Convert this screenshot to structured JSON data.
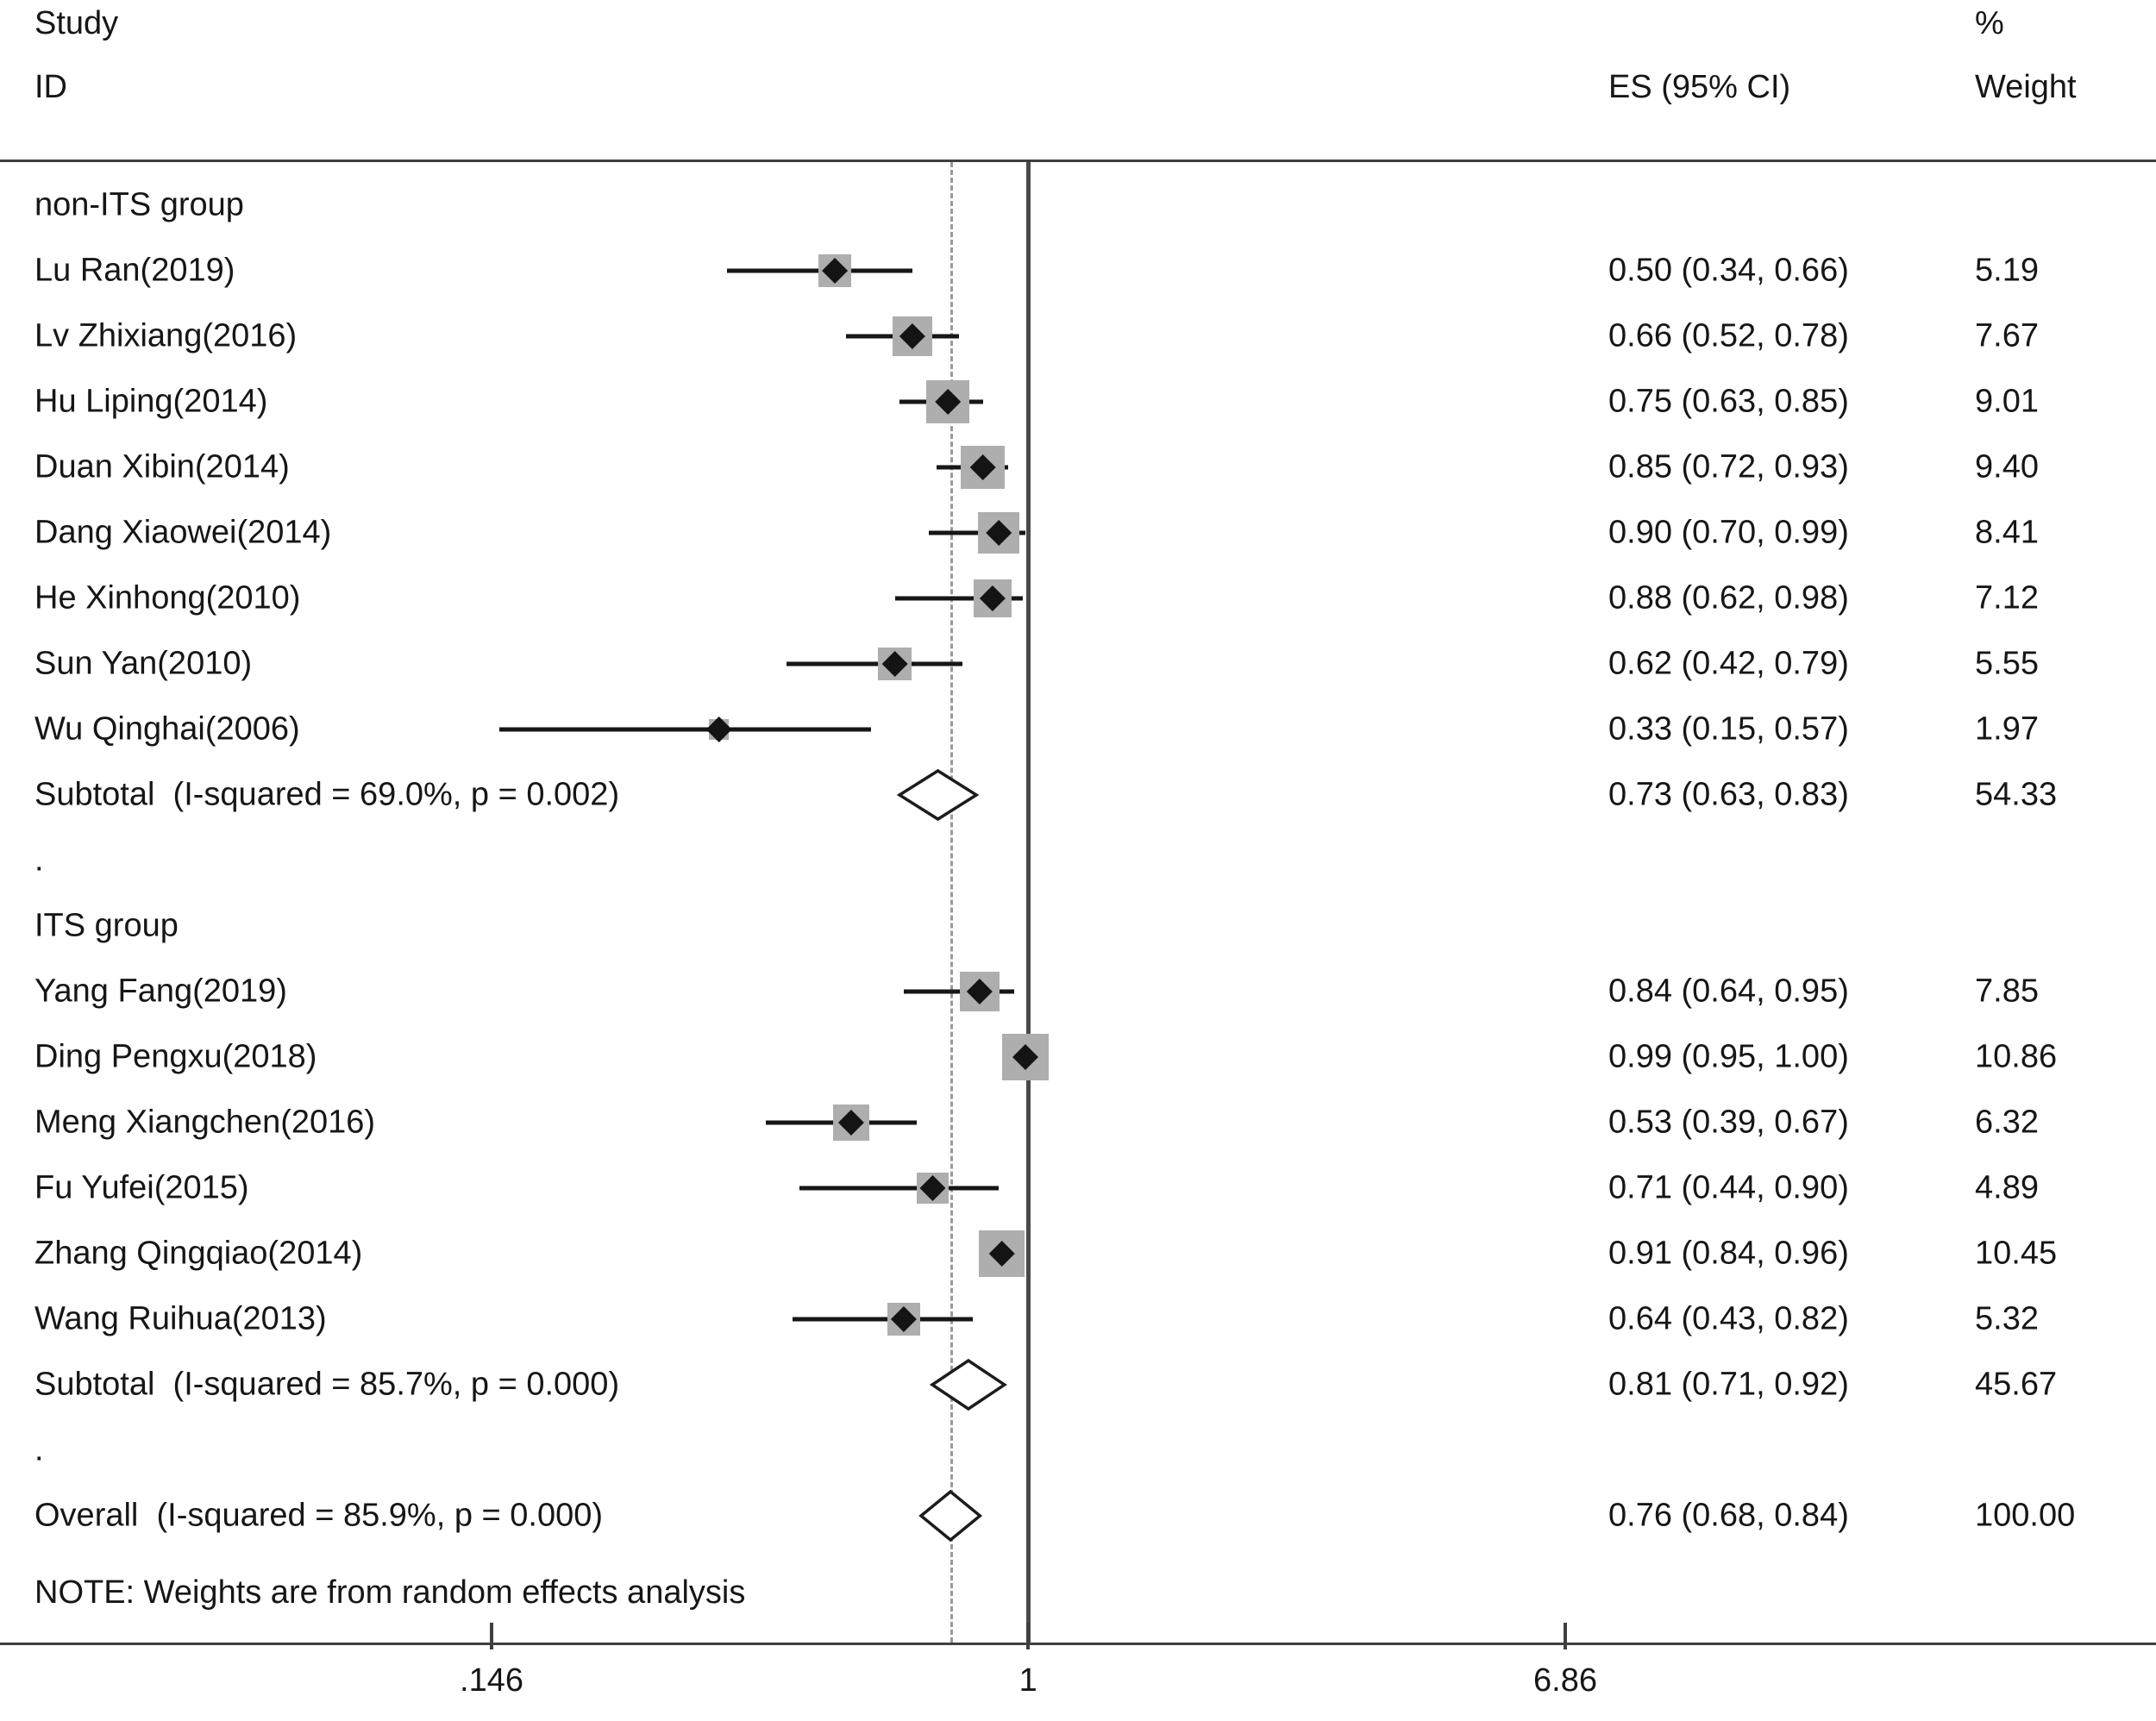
{
  "header": {
    "col_study_line1": "Study",
    "col_study_line2": "ID",
    "col_es": "ES (95% CI)",
    "col_weight_line1": "%",
    "col_weight_line2": "Weight"
  },
  "note": "NOTE: Weights are from random effects analysis",
  "colors": {
    "square": "#aeaeae",
    "marker": "#141414",
    "ci_line": "#161616",
    "diamond_stroke": "#1c1c1c",
    "null_line": "#4a4a4a",
    "dashed_line": "#9a9a9a",
    "rule": "#3f3f3f"
  },
  "axis": {
    "scale": "log",
    "null_value": 1,
    "overall_value": 0.76,
    "ticks": [
      {
        "value": 0.146,
        "label": ".146"
      },
      {
        "value": 1,
        "label": "1"
      },
      {
        "value": 6.86,
        "label": "6.86"
      }
    ]
  },
  "chart_data": {
    "type": "forest",
    "x_scale": "log",
    "xlim": [
      0.146,
      6.86
    ],
    "es_column_header": "ES (95% CI)",
    "weight_column_header": "% Weight",
    "groups": [
      {
        "name": "non-ITS group",
        "studies": [
          {
            "label": "Lu Ran(2019)",
            "es": 0.5,
            "ci_low": 0.34,
            "ci_high": 0.66,
            "es_text": "0.50 (0.34, 0.66)",
            "weight": 5.19,
            "weight_text": "5.19"
          },
          {
            "label": "Lv Zhixiang(2016)",
            "es": 0.66,
            "ci_low": 0.52,
            "ci_high": 0.78,
            "es_text": "0.66 (0.52, 0.78)",
            "weight": 7.67,
            "weight_text": "7.67"
          },
          {
            "label": "Hu Liping(2014)",
            "es": 0.75,
            "ci_low": 0.63,
            "ci_high": 0.85,
            "es_text": "0.75 (0.63, 0.85)",
            "weight": 9.01,
            "weight_text": "9.01"
          },
          {
            "label": "Duan Xibin(2014)",
            "es": 0.85,
            "ci_low": 0.72,
            "ci_high": 0.93,
            "es_text": "0.85 (0.72, 0.93)",
            "weight": 9.4,
            "weight_text": "9.40"
          },
          {
            "label": "Dang Xiaowei(2014)",
            "es": 0.9,
            "ci_low": 0.7,
            "ci_high": 0.99,
            "es_text": "0.90 (0.70, 0.99)",
            "weight": 8.41,
            "weight_text": "8.41"
          },
          {
            "label": "He Xinhong(2010)",
            "es": 0.88,
            "ci_low": 0.62,
            "ci_high": 0.98,
            "es_text": "0.88 (0.62, 0.98)",
            "weight": 7.12,
            "weight_text": "7.12"
          },
          {
            "label": "Sun Yan(2010)",
            "es": 0.62,
            "ci_low": 0.42,
            "ci_high": 0.79,
            "es_text": "0.62 (0.42, 0.79)",
            "weight": 5.55,
            "weight_text": "5.55"
          },
          {
            "label": "Wu Qinghai(2006)",
            "es": 0.33,
            "ci_low": 0.15,
            "ci_high": 0.57,
            "es_text": "0.33 (0.15, 0.57)",
            "weight": 1.97,
            "weight_text": "1.97"
          }
        ],
        "subtotal": {
          "label": "Subtotal  (I-squared = 69.0%, p = 0.002)",
          "es": 0.73,
          "ci_low": 0.63,
          "ci_high": 0.83,
          "es_text": "0.73 (0.63, 0.83)",
          "weight_text": "54.33"
        }
      },
      {
        "name": "ITS group",
        "studies": [
          {
            "label": "Yang Fang(2019)",
            "es": 0.84,
            "ci_low": 0.64,
            "ci_high": 0.95,
            "es_text": "0.84 (0.64, 0.95)",
            "weight": 7.85,
            "weight_text": "7.85"
          },
          {
            "label": "Ding Pengxu(2018)",
            "es": 0.99,
            "ci_low": 0.95,
            "ci_high": 1.0,
            "es_text": "0.99 (0.95, 1.00)",
            "weight": 10.86,
            "weight_text": "10.86"
          },
          {
            "label": "Meng Xiangchen(2016)",
            "es": 0.53,
            "ci_low": 0.39,
            "ci_high": 0.67,
            "es_text": "0.53 (0.39, 0.67)",
            "weight": 6.32,
            "weight_text": "6.32"
          },
          {
            "label": "Fu Yufei(2015)",
            "es": 0.71,
            "ci_low": 0.44,
            "ci_high": 0.9,
            "es_text": "0.71 (0.44, 0.90)",
            "weight": 4.89,
            "weight_text": "4.89"
          },
          {
            "label": "Zhang Qingqiao(2014)",
            "es": 0.91,
            "ci_low": 0.84,
            "ci_high": 0.96,
            "es_text": "0.91 (0.84, 0.96)",
            "weight": 10.45,
            "weight_text": "10.45"
          },
          {
            "label": "Wang Ruihua(2013)",
            "es": 0.64,
            "ci_low": 0.43,
            "ci_high": 0.82,
            "es_text": "0.64 (0.43, 0.82)",
            "weight": 5.32,
            "weight_text": "5.32"
          }
        ],
        "subtotal": {
          "label": "Subtotal  (I-squared = 85.7%, p = 0.000)",
          "es": 0.81,
          "ci_low": 0.71,
          "ci_high": 0.92,
          "es_text": "0.81 (0.71, 0.92)",
          "weight_text": "45.67"
        }
      }
    ],
    "overall": {
      "label": "Overall  (I-squared = 85.9%, p = 0.000)",
      "es": 0.76,
      "ci_low": 0.68,
      "ci_high": 0.84,
      "es_text": "0.76 (0.68, 0.84)",
      "weight_text": "100.00"
    },
    "separator_label": "."
  }
}
